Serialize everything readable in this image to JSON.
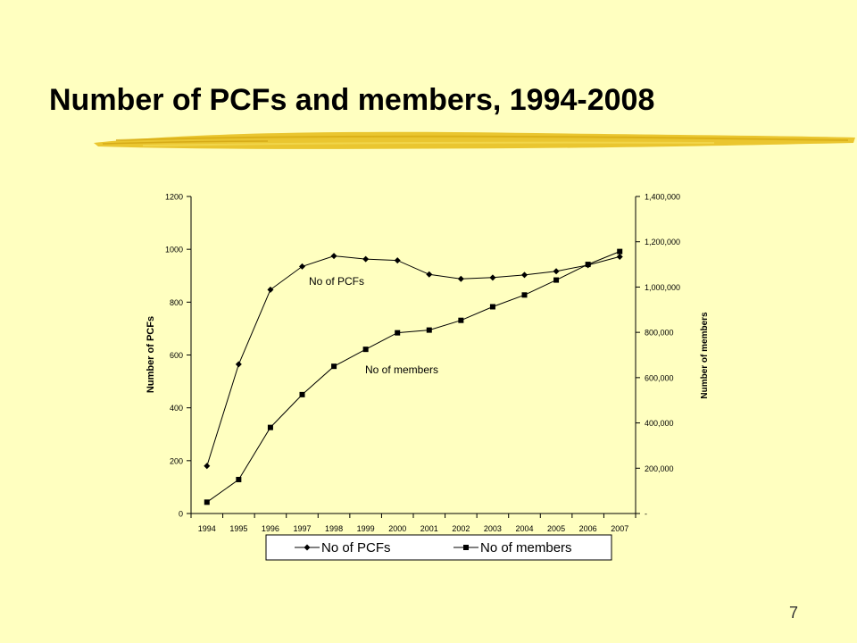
{
  "slide": {
    "title": "Number of PCFs and members, 1994-2008",
    "page_number": "7",
    "accent_color": "#E8C020"
  },
  "chart_data": {
    "type": "line",
    "categories": [
      "1994",
      "1995",
      "1996",
      "1997",
      "1998",
      "1999",
      "2000",
      "2001",
      "2002",
      "2003",
      "2004",
      "2005",
      "2006",
      "2007"
    ],
    "series": [
      {
        "name": "No of PCFs",
        "axis": "left",
        "marker": "diamond",
        "values": [
          180,
          565,
          847,
          935,
          975,
          963,
          958,
          905,
          888,
          893,
          903,
          917,
          940,
          972
        ]
      },
      {
        "name": "No of members",
        "axis": "right",
        "marker": "square",
        "values": [
          50000,
          150000,
          380000,
          525000,
          650000,
          725000,
          798000,
          810000,
          853000,
          913000,
          965000,
          1031000,
          1100000,
          1157000
        ]
      }
    ],
    "ylabel_left": "Number of PCFs",
    "ylabel_right": "Number of members",
    "ylim_left": [
      0,
      1200
    ],
    "ylim_right": [
      0,
      1400000
    ],
    "yticks_left": [
      "0",
      "200",
      "400",
      "600",
      "800",
      "1000",
      "1200"
    ],
    "yticks_right": [
      "-",
      "200,000",
      "400,000",
      "600,000",
      "800,000",
      "1,000,000",
      "1,200,000",
      "1,400,000"
    ],
    "annotations": [
      "No of PCFs",
      "No of members"
    ],
    "legend": {
      "position": "bottom",
      "entries": [
        "No of PCFs",
        "No of members"
      ]
    },
    "grid": false
  }
}
